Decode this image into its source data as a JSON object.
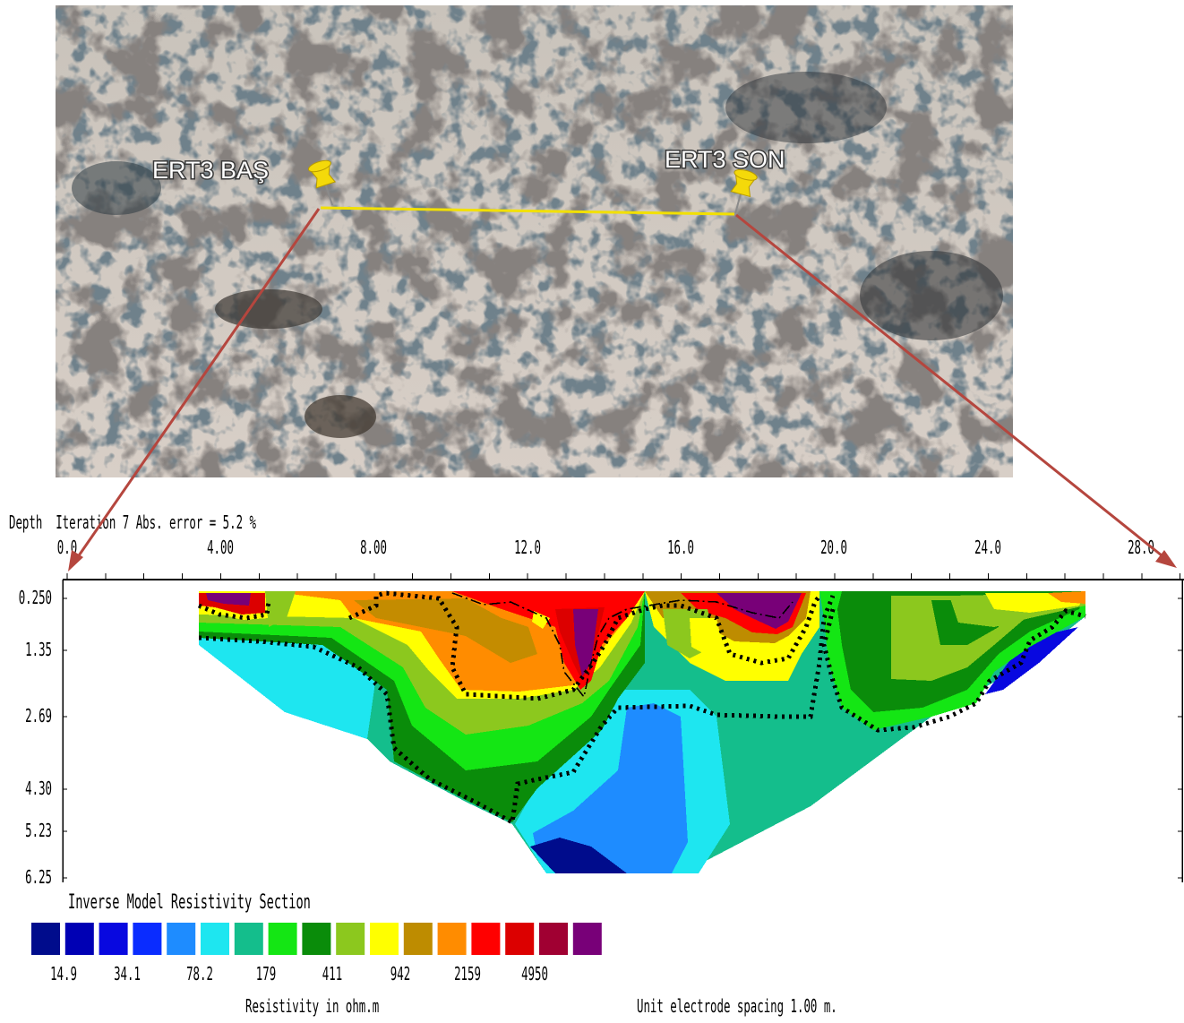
{
  "photo": {
    "start_label": "ERT3 BAŞ",
    "end_label": "ERT3 SON",
    "line_color": "#f2e000",
    "arrow_color": "#b5463e",
    "pin_color": "#f4d90a"
  },
  "section": {
    "header": "Depth  Iteration 7 Abs. error = 5.2 %",
    "x_ticks": [
      "0.0",
      "4.00",
      "8.00",
      "12.0",
      "16.0",
      "20.0",
      "24.0",
      "28.0"
    ],
    "depth_ticks": [
      "0.250",
      "1.35",
      "2.69",
      "4.30",
      "5.23",
      "6.25"
    ],
    "title": "Inverse Model Resistivity Section",
    "legend_colors": [
      "#000c8c",
      "#0000b4",
      "#0808e0",
      "#0a2cff",
      "#1e8cff",
      "#1ee6f0",
      "#14be8c",
      "#14e614",
      "#0a8c0a",
      "#8cc81e",
      "#ffff00",
      "#be8c00",
      "#ff8c00",
      "#ff0000",
      "#dc0000",
      "#a00032",
      "#780078"
    ],
    "legend_values": [
      "14.9",
      "34.1",
      "78.2",
      "179",
      "411",
      "942",
      "2159",
      "4950"
    ],
    "legend_caption": "Resistivity in ohm.m",
    "spacing_note": "Unit electrode spacing 1.00 m."
  }
}
